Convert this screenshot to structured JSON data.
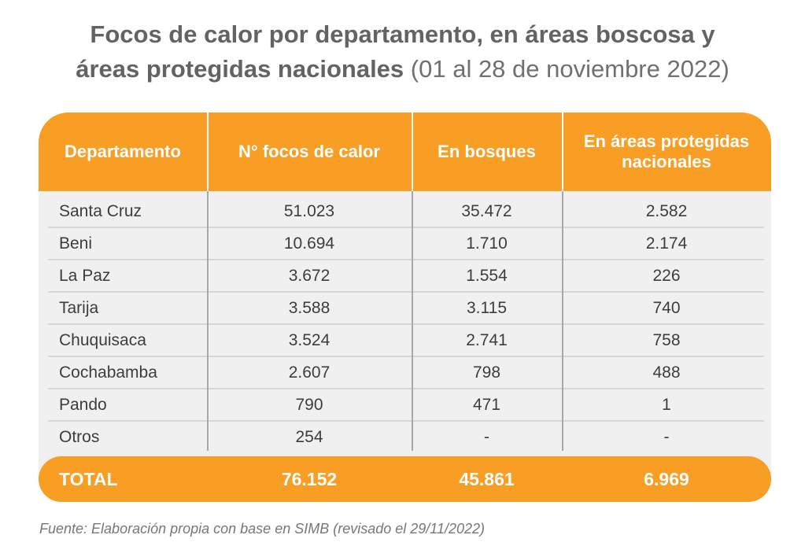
{
  "title": {
    "line1": "Focos de calor por departamento, en áreas boscosa y",
    "line2_bold": "áreas protegidas nacionales",
    "line2_light": " (01 al 28 de noviembre 2022)"
  },
  "chart_data": {
    "type": "table",
    "columns": [
      "Departamento",
      "N° focos de calor",
      "En bosques",
      "En áreas protegidas nacionales"
    ],
    "rows": [
      [
        "Santa Cruz",
        "51.023",
        "35.472",
        "2.582"
      ],
      [
        "Beni",
        "10.694",
        "1.710",
        "2.174"
      ],
      [
        "La Paz",
        "3.672",
        "1.554",
        "226"
      ],
      [
        "Tarija",
        "3.588",
        "3.115",
        "740"
      ],
      [
        "Chuquisaca",
        "3.524",
        "2.741",
        "758"
      ],
      [
        "Cochabamba",
        "2.607",
        "798",
        "488"
      ],
      [
        "Pando",
        "790",
        "471",
        "1"
      ],
      [
        "Otros",
        "254",
        "-",
        "-"
      ]
    ],
    "total": [
      "TOTAL",
      "76.152",
      "45.861",
      "6.969"
    ]
  },
  "source": "Fuente: Elaboración propia con base en SIMB (revisado el 29/11/2022)",
  "colors": {
    "accent": "#f89e25",
    "body_bg": "#f0f0f0"
  }
}
